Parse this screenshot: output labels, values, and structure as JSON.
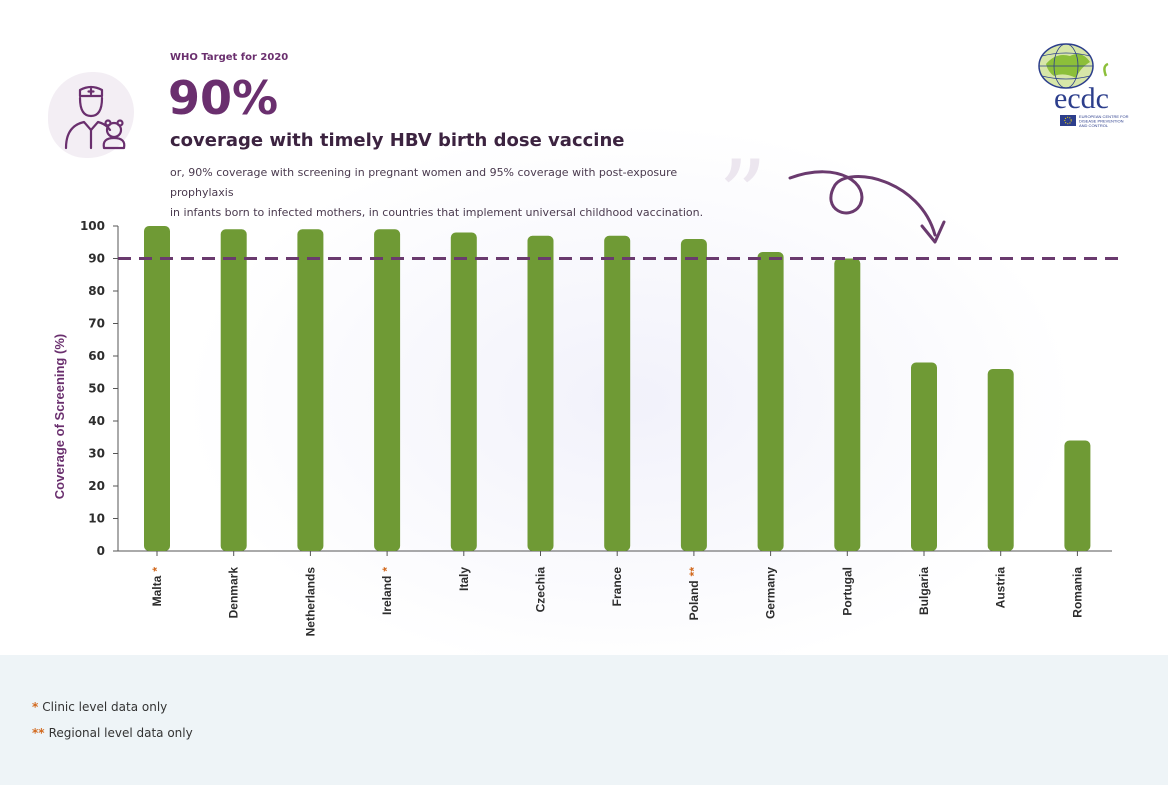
{
  "header": {
    "who_target": "WHO Target for 2020",
    "big_percent": "90%",
    "headline": "coverage with timely HBV birth dose vaccine",
    "subtext_line1": "or, 90% coverage with screening in pregnant women and 95% coverage with post-exposure prophylaxis",
    "subtext_line2": "in infants born to infected mothers, in countries that implement universal childhood vaccination."
  },
  "logo": {
    "text": "ecdc",
    "caption_line1": "EUROPEAN CENTRE FOR",
    "caption_line2": "DISEASE PREVENTION",
    "caption_line3": "AND CONTROL"
  },
  "colors": {
    "bar": "#6f9a35",
    "target_line": "#6a3a6e",
    "star": "#d2691e",
    "purple": "#6a2f6e"
  },
  "chart_data": {
    "type": "bar",
    "title": "coverage with timely HBV birth dose vaccine",
    "ylabel": "Coverage of Screening (%)",
    "xlabel": "",
    "ylim": [
      0,
      100
    ],
    "yticks": [
      0,
      10,
      20,
      30,
      40,
      50,
      60,
      70,
      80,
      90,
      100
    ],
    "target": 90,
    "categories": [
      "Malta",
      "Denmark",
      "Netherlands",
      "Ireland",
      "Italy",
      "Czechia",
      "France",
      "Poland",
      "Germany",
      "Portugal",
      "Bulgaria",
      "Austria",
      "Romania"
    ],
    "markers": [
      "*",
      "",
      "",
      "*",
      "",
      "",
      "",
      "**",
      "",
      "",
      "",
      "",
      ""
    ],
    "values": [
      100,
      99,
      99,
      99,
      98,
      97,
      97,
      96,
      92,
      90,
      58,
      56,
      34
    ]
  },
  "legend": [
    {
      "marker": "*",
      "text": "Clinic level data only"
    },
    {
      "marker": "**",
      "text": "Regional level data only"
    }
  ]
}
